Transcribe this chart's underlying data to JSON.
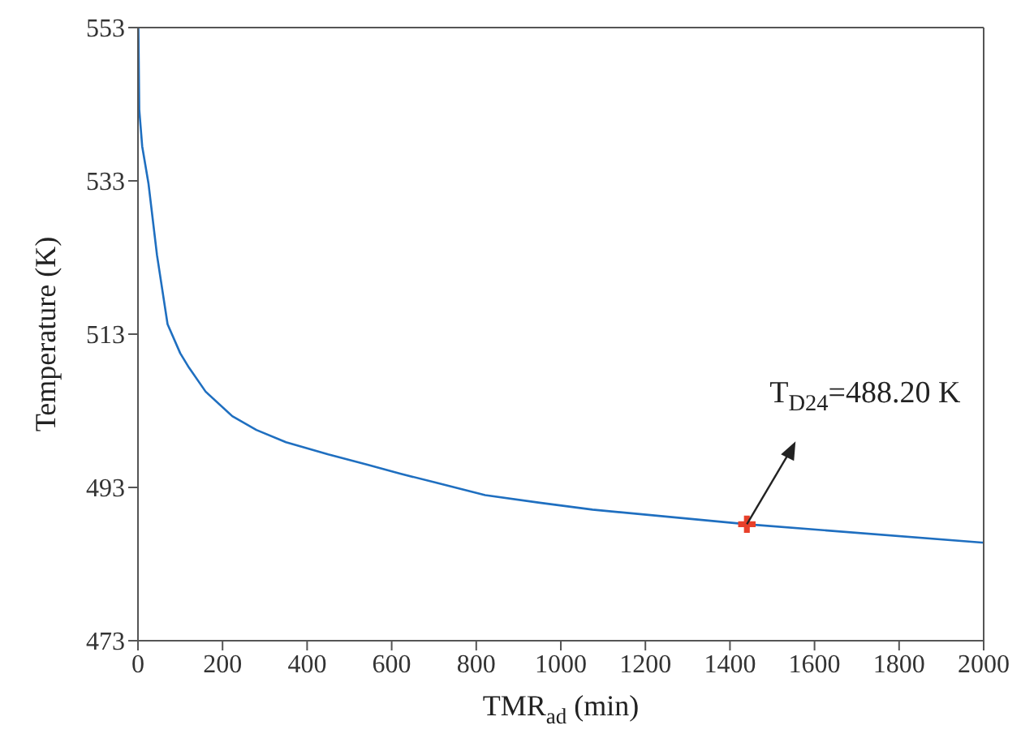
{
  "chart_data": {
    "type": "line",
    "xlabel": "TMR$_{ad}$ (min)",
    "ylabel": "Temperature (K)",
    "xlim": [
      0,
      2000
    ],
    "xticks": [
      0,
      200,
      400,
      600,
      800,
      1000,
      1200,
      1400,
      1600,
      1800,
      2000
    ],
    "ylim": [
      473,
      553
    ],
    "yticks": [
      473,
      493,
      513,
      533,
      553
    ],
    "grid": false,
    "legend": false,
    "series": [
      {
        "color": "#1f6fc0",
        "marker": "none",
        "x": [
          1,
          3,
          10,
          25,
          45,
          70,
          100,
          121,
          160,
          223,
          280,
          350,
          450,
          541,
          620,
          706,
          821,
          950,
          1075,
          1440,
          1996,
          2000
        ],
        "values": [
          553,
          542.3,
          537.5,
          532.6,
          523.3,
          514.3,
          510.5,
          508.6,
          505.5,
          502.3,
          500.5,
          498.9,
          497.3,
          496,
          494.8,
          493.6,
          492,
          491,
          490.1,
          488.2,
          485.8,
          485.8
        ]
      },
      {
        "type": "scatter",
        "color": "#e8402a",
        "marker": "cross",
        "x": [
          1440
        ],
        "values": [
          488.2
        ]
      }
    ],
    "annotations": [
      {
        "text": "T$_{D24}$=488.20 K",
        "x": 1440,
        "y": 488.2
      }
    ]
  }
}
